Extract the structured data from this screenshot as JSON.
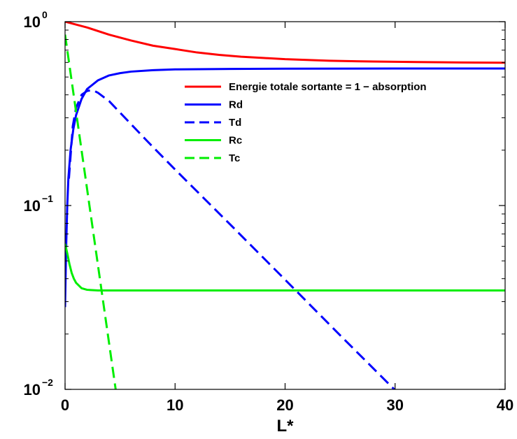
{
  "chart_data": {
    "type": "line",
    "title": "",
    "xlabel": "L*",
    "ylabel": "",
    "xlim": [
      0,
      40
    ],
    "ylim": [
      0.01,
      1
    ],
    "yscale": "log",
    "grid": false,
    "legend_position": "top-right",
    "x_ticks": [
      {
        "value": 0,
        "label": "0"
      },
      {
        "value": 10,
        "label": "10"
      },
      {
        "value": 20,
        "label": "20"
      },
      {
        "value": 30,
        "label": "30"
      },
      {
        "value": 40,
        "label": "40"
      }
    ],
    "y_ticks": [
      {
        "value": 0.01,
        "base": "10",
        "exponent": "−2"
      },
      {
        "value": 0.1,
        "base": "10",
        "exponent": "−1"
      },
      {
        "value": 1,
        "base": "10",
        "exponent": "0"
      }
    ],
    "series": [
      {
        "name": "Energie totale sortante = 1 − absorption",
        "color": "#ff0000",
        "dash": "solid",
        "points": [
          [
            0,
            1.0
          ],
          [
            2,
            0.93
          ],
          [
            4,
            0.85
          ],
          [
            6,
            0.79
          ],
          [
            8,
            0.74
          ],
          [
            10,
            0.71
          ],
          [
            12,
            0.68
          ],
          [
            14,
            0.66
          ],
          [
            16,
            0.645
          ],
          [
            18,
            0.635
          ],
          [
            20,
            0.625
          ],
          [
            24,
            0.613
          ],
          [
            28,
            0.607
          ],
          [
            32,
            0.603
          ],
          [
            36,
            0.6
          ],
          [
            40,
            0.598
          ]
        ]
      },
      {
        "name": "Rd",
        "color": "#0000ff",
        "dash": "solid",
        "points": [
          [
            0,
            0.028
          ],
          [
            0.1,
            0.06
          ],
          [
            0.2,
            0.1
          ],
          [
            0.3,
            0.14
          ],
          [
            0.5,
            0.2
          ],
          [
            0.75,
            0.26
          ],
          [
            1,
            0.31
          ],
          [
            1.5,
            0.38
          ],
          [
            2,
            0.43
          ],
          [
            3,
            0.48
          ],
          [
            4,
            0.51
          ],
          [
            5,
            0.525
          ],
          [
            6,
            0.535
          ],
          [
            8,
            0.545
          ],
          [
            10,
            0.55
          ],
          [
            15,
            0.553
          ],
          [
            20,
            0.555
          ],
          [
            30,
            0.556
          ],
          [
            40,
            0.556
          ]
        ]
      },
      {
        "name": "Td",
        "color": "#0000ff",
        "dash": "dashed",
        "points": [
          [
            0.35,
            0.14
          ],
          [
            0.7,
            0.27
          ],
          [
            1,
            0.34
          ],
          [
            1.5,
            0.4
          ],
          [
            2,
            0.42
          ],
          [
            2.5,
            0.425
          ],
          [
            3,
            0.41
          ],
          [
            4,
            0.37
          ],
          [
            5,
            0.32
          ],
          [
            7.5,
            0.223
          ],
          [
            10,
            0.157
          ],
          [
            15,
            0.079
          ],
          [
            20,
            0.0395
          ],
          [
            25,
            0.0197
          ],
          [
            30,
            0.0099
          ],
          [
            32.8,
            0.0067
          ]
        ]
      },
      {
        "name": "Rc",
        "color": "#00ee00",
        "dash": "solid",
        "points": [
          [
            0,
            0.062
          ],
          [
            0.2,
            0.055
          ],
          [
            0.4,
            0.048
          ],
          [
            0.6,
            0.043
          ],
          [
            0.8,
            0.04
          ],
          [
            1,
            0.038
          ],
          [
            1.5,
            0.0355
          ],
          [
            2,
            0.0348
          ],
          [
            3,
            0.0345
          ],
          [
            5,
            0.0345
          ],
          [
            10,
            0.0345
          ],
          [
            20,
            0.0345
          ],
          [
            30,
            0.0345
          ],
          [
            40,
            0.0345
          ]
        ]
      },
      {
        "name": "Tc",
        "color": "#00ee00",
        "dash": "dashed",
        "points": [
          [
            0,
            0.85
          ],
          [
            4.6,
            0.01
          ]
        ]
      }
    ]
  }
}
